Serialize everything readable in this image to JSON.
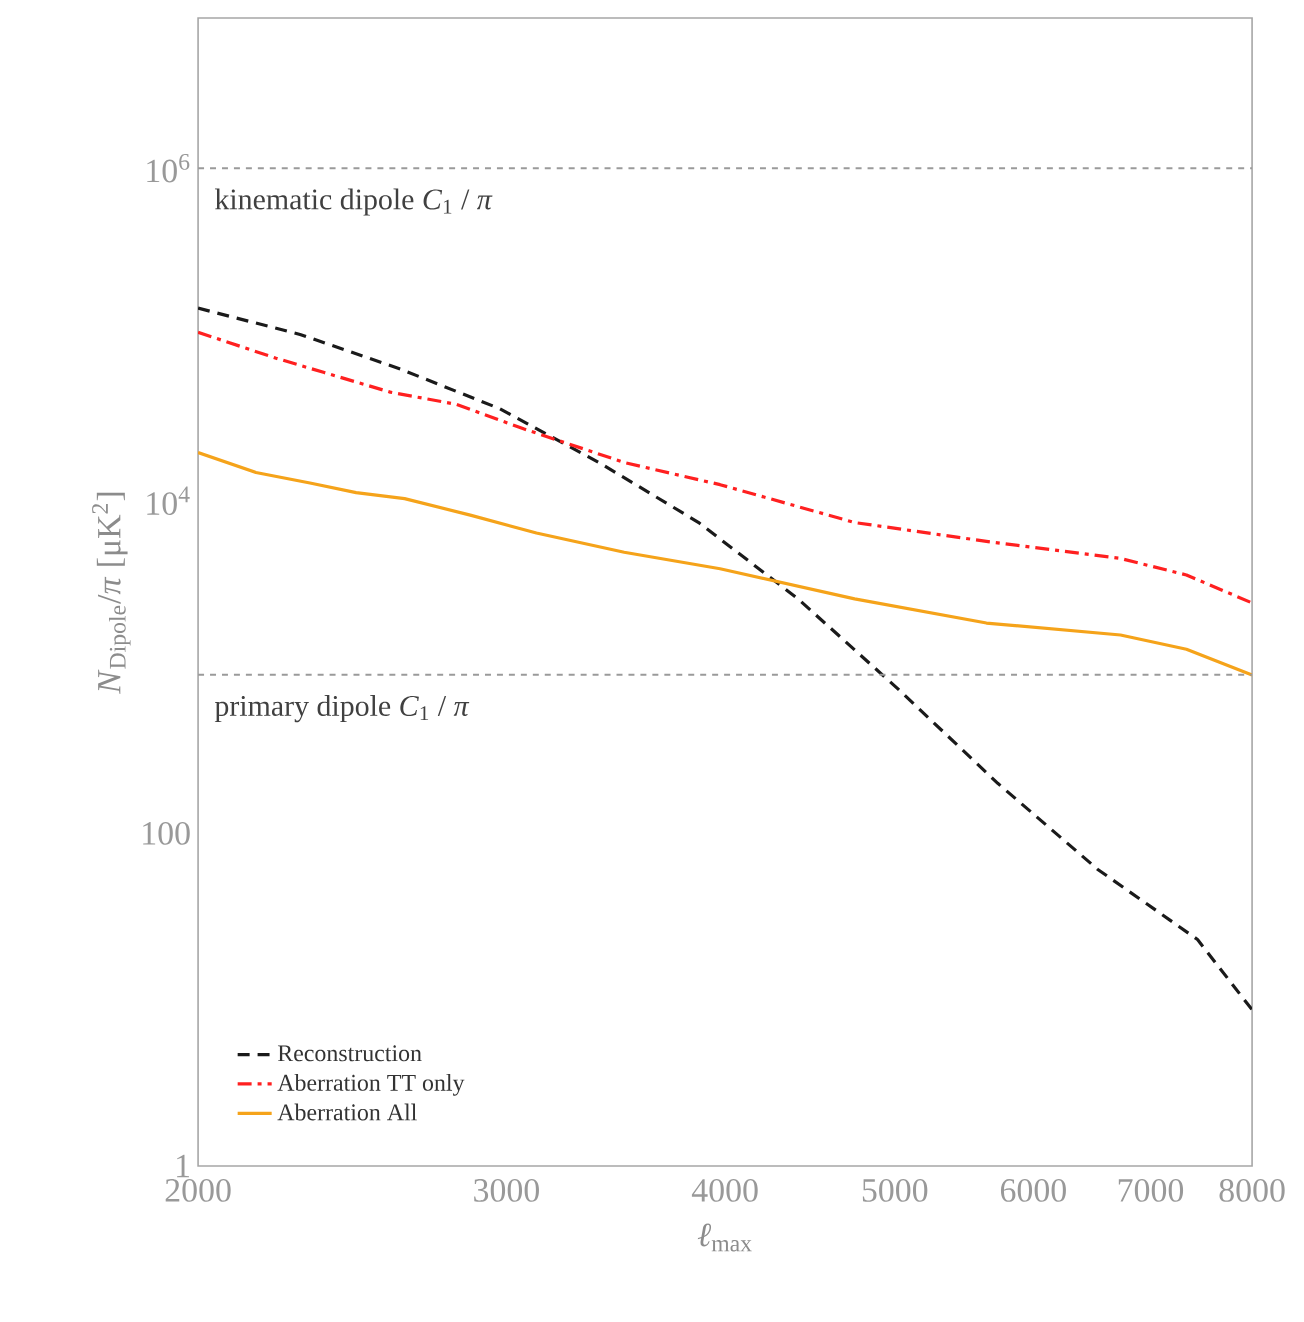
{
  "chart_data": {
    "type": "line",
    "xlabel": "*ℓ*$_{max}$",
    "ylabel": "*N*$_{Dipole}$/*π* [μK$^{2}$]",
    "log": "xy",
    "xlim": [
      2000,
      8000
    ],
    "ylim": [
      1,
      8000000
    ],
    "xticks": [
      2000,
      3000,
      4000,
      5000,
      6000,
      7000,
      8000
    ],
    "yticks": [
      1,
      100,
      {
        "value": 10000,
        "label": "10$^{4}$"
      },
      {
        "value": 1000000,
        "label": "10$^{6}$"
      }
    ],
    "grid": false,
    "legend": "bottom left",
    "marker": "none",
    "ref_lines": [
      {
        "axis": "y",
        "value": 1000000,
        "label": "kinematic dipole *C*$_{1}$ / *π*",
        "color": "#9a9a9a",
        "line_style": "dashed"
      },
      {
        "axis": "y",
        "value": 900,
        "label": "primary dipole *C*$_{1}$ / *π*",
        "color": "#9a9a9a",
        "line_style": "dashed"
      }
    ],
    "series": [
      {
        "name": "Reconstruction",
        "color": "#1a1a1a",
        "line_style": "dashed",
        "x": [
          2000,
          2287,
          2609,
          2974,
          3391,
          3864,
          4403,
          5023,
          5726,
          6531,
          7447,
          8000
        ],
        "values": [
          144000,
          100000,
          62000,
          35800,
          16900,
          7400,
          2570,
          737,
          200,
          60.7,
          23,
          8.7
        ]
      },
      {
        "name": "Aberration TT only",
        "color": "#ff2020",
        "line_style": "dashdot",
        "x": [
          2000,
          2216,
          2361,
          2575,
          2809,
          3071,
          3503,
          3974,
          4743,
          5641,
          6729,
          7339,
          8000
        ],
        "values": [
          103000,
          72000,
          59000,
          45000,
          38000,
          27000,
          17000,
          12500,
          7400,
          5700,
          4500,
          3580,
          2430
        ]
      },
      {
        "name": "Aberration All",
        "color": "#f5a31a",
        "line_style": "solid",
        "x": [
          2000,
          2158,
          2317,
          2462,
          2624,
          2861,
          3121,
          3503,
          3974,
          4743,
          5641,
          6729,
          7339,
          8000
        ],
        "values": [
          19500,
          14800,
          12800,
          11200,
          10300,
          8200,
          6400,
          4900,
          3900,
          2570,
          1840,
          1560,
          1280,
          895
        ]
      }
    ]
  }
}
